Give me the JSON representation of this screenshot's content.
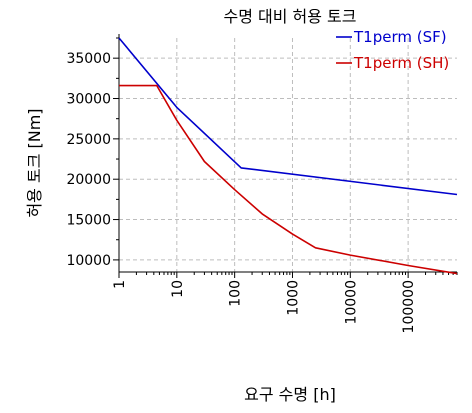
{
  "chart_data": {
    "type": "line",
    "title": "수명 대비 허용 토크",
    "xlabel": "요구 수명 [h]",
    "ylabel": "허용 토크 [Nm]",
    "x_scale": "log",
    "xlim": [
      1,
      700000
    ],
    "ylim": [
      8500,
      37500
    ],
    "x_ticks": [
      1,
      10,
      100,
      1000,
      10000,
      100000
    ],
    "x_tick_labels": [
      "1",
      "10",
      "100",
      "1000",
      "10000",
      "100000"
    ],
    "y_ticks": [
      10000,
      15000,
      20000,
      25000,
      30000,
      35000
    ],
    "y_tick_labels": [
      "10000",
      "15000",
      "20000",
      "25000",
      "30000",
      "35000"
    ],
    "grid": true,
    "legend_position": "top-right",
    "series": [
      {
        "name": "T1perm (SF)",
        "color": "#0000cc",
        "x": [
          1,
          10,
          130,
          700000
        ],
        "y": [
          37500,
          28900,
          21400,
          18100
        ]
      },
      {
        "name": "T1perm (SH)",
        "color": "#cc0000",
        "x": [
          1,
          4.5,
          10,
          30,
          100,
          300,
          1000,
          2500,
          10000,
          100000,
          700000
        ],
        "y": [
          31600,
          31600,
          27300,
          22200,
          18700,
          15700,
          13200,
          11500,
          10600,
          9300,
          8300
        ]
      }
    ]
  }
}
